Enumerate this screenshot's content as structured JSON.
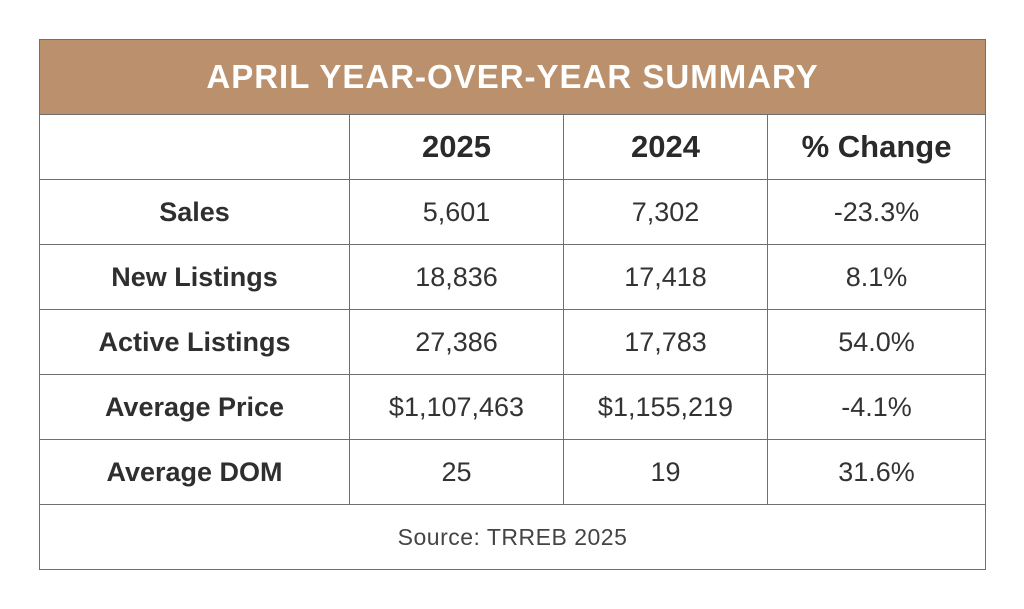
{
  "title": "APRIL YEAR-OVER-YEAR SUMMARY",
  "columns": [
    "",
    "2025",
    "2024",
    "% Change"
  ],
  "rows": [
    {
      "label": "Sales",
      "y2025": "5,601",
      "y2024": "7,302",
      "change": "-23.3%"
    },
    {
      "label": "New Listings",
      "y2025": "18,836",
      "y2024": "17,418",
      "change": "8.1%"
    },
    {
      "label": "Active Listings",
      "y2025": "27,386",
      "y2024": "17,783",
      "change": "54.0%"
    },
    {
      "label": "Average Price",
      "y2025": "$1,107,463",
      "y2024": "$1,155,219",
      "change": "-4.1%"
    },
    {
      "label": "Average DOM",
      "y2025": "25",
      "y2024": "19",
      "change": "31.6%"
    }
  ],
  "source": "Source: TRREB 2025",
  "colors": {
    "header_band": "#bb916d",
    "border": "#6f6f6f",
    "text": "#2a2a2a"
  },
  "chart_data": {
    "type": "table",
    "title": "APRIL YEAR-OVER-YEAR SUMMARY",
    "columns": [
      "",
      "2025",
      "2024",
      "% Change"
    ],
    "rows": [
      [
        "Sales",
        "5,601",
        "7,302",
        "-23.3%"
      ],
      [
        "New Listings",
        "18,836",
        "17,418",
        "8.1%"
      ],
      [
        "Active Listings",
        "27,386",
        "17,783",
        "54.0%"
      ],
      [
        "Average Price",
        "$1,107,463",
        "$1,155,219",
        "-4.1%"
      ],
      [
        "Average DOM",
        "25",
        "19",
        "31.6%"
      ]
    ],
    "source": "Source: TRREB 2025"
  }
}
